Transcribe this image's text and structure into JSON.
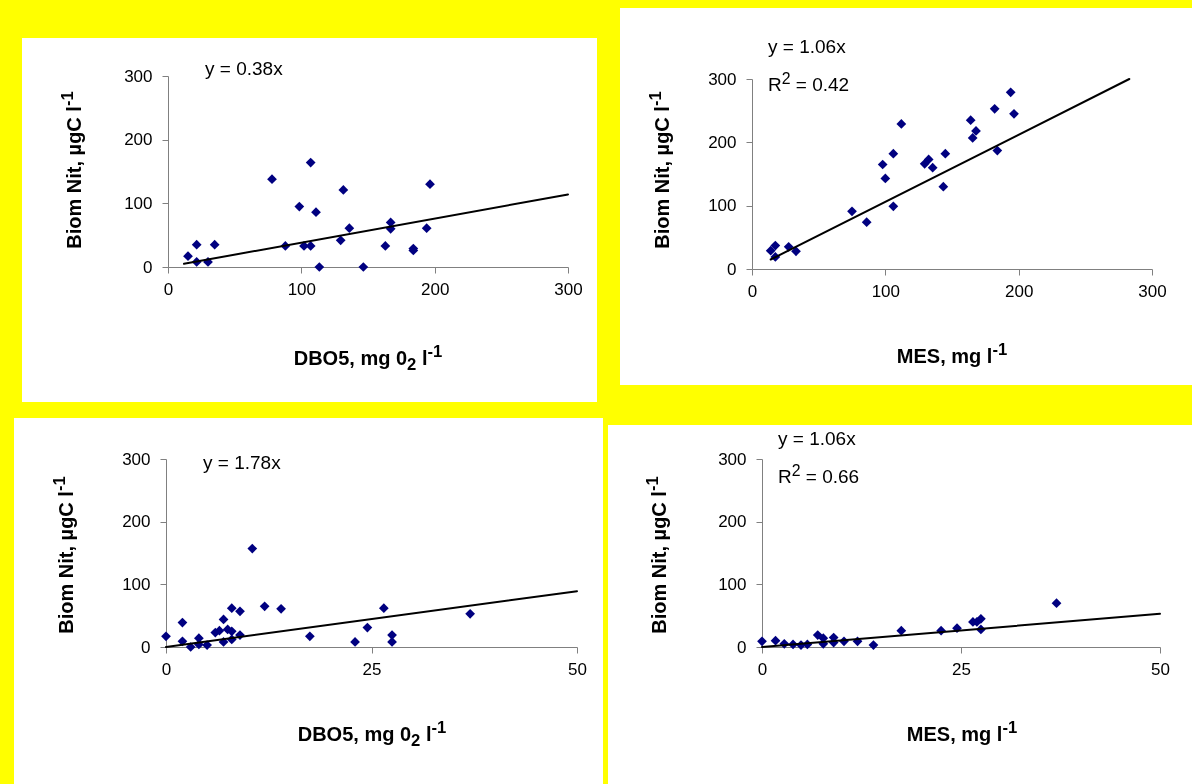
{
  "chart_data": [
    {
      "type": "scatter",
      "xlabel": "DBO5, mg 0$_{2}$ l$^{-1}$",
      "ylabel": "Biom Nit, µgC l$^{-1}$",
      "annotations": [
        "y = 0.38x"
      ],
      "xlim": [
        0,
        300
      ],
      "xticks": [
        0,
        100,
        200,
        300
      ],
      "ylim": [
        0,
        300
      ],
      "yticks": [
        0,
        100,
        200,
        300
      ],
      "grid": false,
      "marker": "diamond",
      "series": [
        {
          "color": "#000080",
          "x": [
            15,
            21.5,
            21.5,
            30,
            35,
            78,
            88,
            98.5,
            102,
            107,
            107,
            111,
            113.5,
            129.5,
            131.5,
            136,
            146.5,
            163,
            167,
            167,
            184,
            184,
            194,
            196.5
          ],
          "values": [
            17,
            35,
            8,
            8,
            35,
            138,
            33,
            95,
            33,
            164,
            33,
            86,
            0,
            42,
            121,
            61,
            0,
            33,
            70,
            60,
            29,
            26,
            61,
            130
          ]
        },
        {
          "type": "line",
          "marker": "none",
          "color": "#000000",
          "line_style": "solid",
          "x": [
            12,
            300
          ],
          "values": [
            5,
            114
          ]
        }
      ]
    },
    {
      "type": "scatter",
      "xlabel": "MES, mg l$^{-1}$",
      "ylabel": "Biom Nit, µgC l$^{-1}$",
      "annotations": [
        "y = 1.06x",
        "R$^{2}$ = 0.42"
      ],
      "xlim": [
        0,
        300
      ],
      "xticks": [
        0,
        100,
        200,
        300
      ],
      "ylim": [
        0,
        300
      ],
      "yticks": [
        0,
        100,
        200,
        300
      ],
      "grid": false,
      "marker": "diamond",
      "series": [
        {
          "color": "#000080",
          "x": [
            14,
            17.5,
            17.5,
            27.5,
            33,
            75,
            86,
            98,
            100,
            106,
            106,
            112,
            129.5,
            132.5,
            135.5,
            143.5,
            145,
            164,
            165.5,
            168,
            182,
            184,
            194,
            196.5
          ],
          "values": [
            29,
            37,
            19,
            35,
            28,
            91,
            74,
            165,
            143,
            99,
            182,
            229,
            166,
            173,
            160,
            130,
            182,
            235,
            207,
            218,
            253,
            187,
            279,
            245
          ]
        },
        {
          "type": "line",
          "marker": "none",
          "color": "#000000",
          "line_style": "solid",
          "x": [
            14,
            283
          ],
          "values": [
            15,
            300
          ]
        }
      ]
    },
    {
      "type": "scatter",
      "xlabel": "DBO5, mg 0$_{2}$ l$^{-1}$",
      "ylabel": "Biom Nit, µgC l$^{-1}$",
      "annotations": [
        "y = 1.78x"
      ],
      "xlim": [
        0,
        50
      ],
      "xticks": [
        0,
        25,
        50
      ],
      "ylim": [
        0,
        300
      ],
      "yticks": [
        0,
        100,
        200,
        300
      ],
      "grid": false,
      "marker": "diamond",
      "series": [
        {
          "color": "#000080",
          "x": [
            0,
            2,
            2,
            3,
            4,
            4,
            5,
            6,
            6.5,
            7,
            7,
            7.5,
            8,
            8,
            8,
            9,
            9,
            10.5,
            12,
            14,
            17.5,
            23,
            24.5,
            26.5,
            27.5,
            27.5,
            37
          ],
          "values": [
            17,
            39,
            9,
            0,
            14,
            4,
            3,
            23,
            26,
            44,
            8,
            28,
            62,
            25,
            12,
            57,
            19,
            157,
            65,
            61,
            17,
            8,
            31,
            62,
            19,
            8,
            53
          ]
        },
        {
          "type": "line",
          "marker": "none",
          "color": "#000000",
          "line_style": "solid",
          "x": [
            0,
            50
          ],
          "values": [
            0,
            89
          ]
        }
      ]
    },
    {
      "type": "scatter",
      "xlabel": "MES, mg l$^{-1}$",
      "ylabel": "Biom Nit, µgC l$^{-1}$",
      "annotations": [
        "y = 1.06x",
        "R$^{2}$ = 0.66"
      ],
      "xlim": [
        0,
        50
      ],
      "xticks": [
        0,
        25,
        50
      ],
      "ylim": [
        0,
        300
      ],
      "yticks": [
        0,
        100,
        200,
        300
      ],
      "grid": false,
      "marker": "diamond",
      "series": [
        {
          "color": "#000080",
          "x": [
            0,
            1.7,
            2.8,
            3.9,
            4.9,
            5.7,
            7,
            7.7,
            7.7,
            9,
            9,
            10.3,
            12,
            14,
            17.5,
            22.5,
            24.5,
            26.5,
            27,
            27.5,
            27.5,
            37
          ],
          "values": [
            9,
            10,
            5,
            4,
            3,
            4,
            19,
            14,
            5,
            15,
            7,
            9,
            9,
            3,
            26,
            26,
            30,
            40,
            40,
            45,
            28,
            70
          ]
        },
        {
          "type": "line",
          "marker": "none",
          "color": "#000000",
          "line_style": "solid",
          "x": [
            0,
            50
          ],
          "values": [
            0,
            53
          ]
        }
      ]
    }
  ]
}
